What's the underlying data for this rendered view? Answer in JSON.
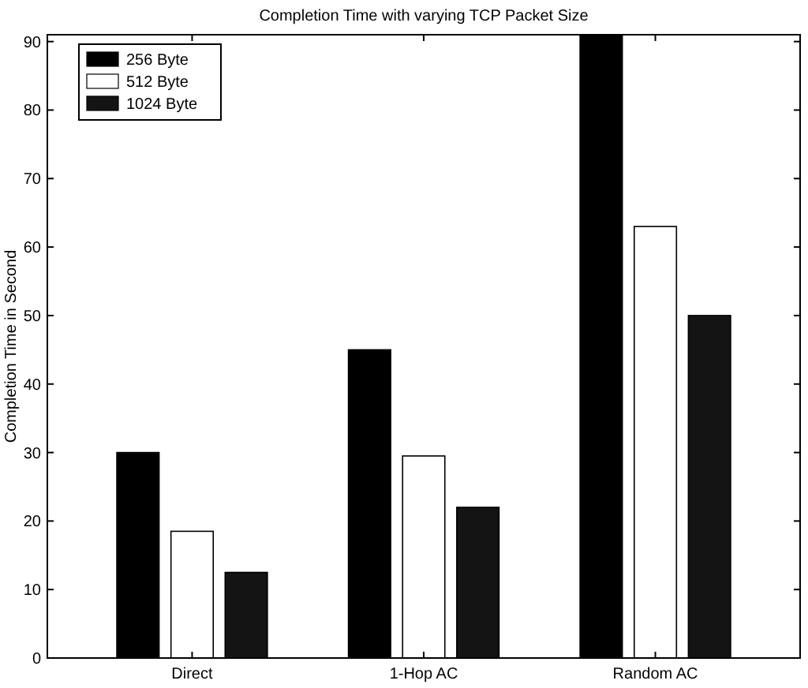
{
  "chart_data": {
    "type": "bar",
    "title": "Completion Time with varying TCP Packet Size",
    "ylabel": "Completion Time in Second",
    "categories": [
      "Direct",
      "1-Hop AC",
      "Random AC"
    ],
    "series": [
      {
        "name": "256 Byte",
        "color": "#000000",
        "values": [
          30,
          45,
          91
        ]
      },
      {
        "name": "512 Byte",
        "color": "#ffffff",
        "values": [
          18.5,
          29.5,
          63
        ]
      },
      {
        "name": "1024 Byte",
        "color": "#141414",
        "values": [
          12.5,
          22,
          50
        ]
      }
    ],
    "ylim": [
      0,
      91
    ],
    "yticks": [
      0,
      10,
      20,
      30,
      40,
      50,
      60,
      70,
      80,
      90
    ],
    "legend": "top left"
  }
}
